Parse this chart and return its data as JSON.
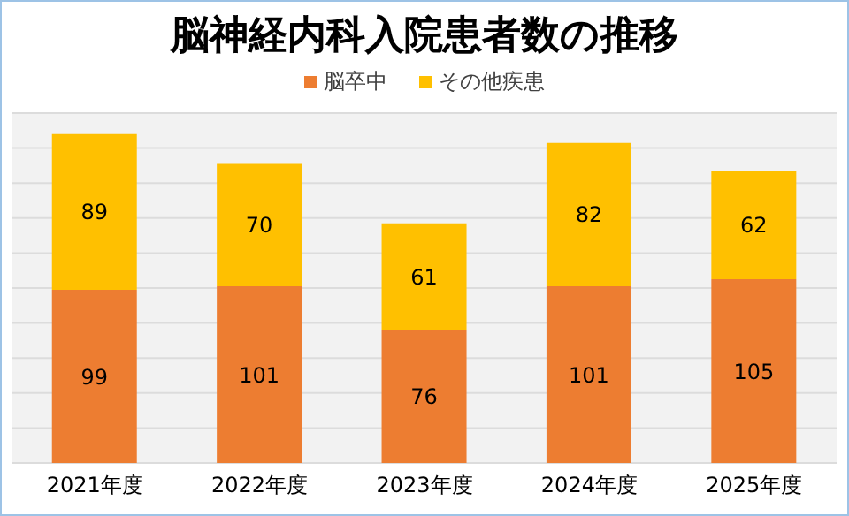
{
  "chart_data": {
    "type": "bar",
    "title": "脳神経内科入院患者数の推移",
    "categories": [
      "2021年度",
      "2022年度",
      "2023年度",
      "2024年度",
      "2025年度"
    ],
    "stacked": true,
    "data_labels": true,
    "legend": "top",
    "grid": "y",
    "tick_labels": "x",
    "ylim": [
      0,
      200
    ],
    "yticks": [
      {
        "value": 0,
        "label": null
      },
      {
        "value": 20,
        "label": null
      },
      {
        "value": 40,
        "label": null
      },
      {
        "value": 60,
        "label": null
      },
      {
        "value": 80,
        "label": null
      },
      {
        "value": 100,
        "label": null
      },
      {
        "value": 120,
        "label": null
      },
      {
        "value": 140,
        "label": null
      },
      {
        "value": 160,
        "label": null
      },
      {
        "value": 180,
        "label": null
      },
      {
        "value": 200,
        "label": null
      }
    ],
    "series": [
      {
        "name": "脳卒中",
        "color": "#ed7d31",
        "values": [
          99,
          101,
          76,
          101,
          105
        ]
      },
      {
        "name": "その他疾患",
        "color": "#ffc000",
        "values": [
          89,
          70,
          61,
          82,
          62
        ]
      }
    ]
  }
}
